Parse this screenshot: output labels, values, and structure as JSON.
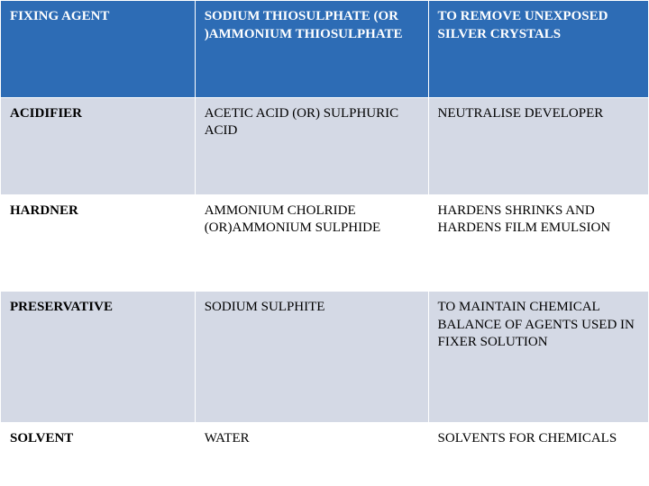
{
  "table": {
    "rows": [
      {
        "style": "header",
        "agent": "FIXING AGENT",
        "chemical": "SODIUM THIOSULPHATE (OR )AMMONIUM THIOSULPHATE",
        "purpose": "TO REMOVE UNEXPOSED SILVER CRYSTALS"
      },
      {
        "style": "alt",
        "agent": "ACIDIFIER",
        "chemical": "ACETIC ACID (OR) SULPHURIC ACID",
        "purpose": "NEUTRALISE DEVELOPER"
      },
      {
        "style": "plain",
        "agent": "HARDNER",
        "chemical": "AMMONIUM CHOLRIDE (OR)AMMONIUM SULPHIDE",
        "purpose": "HARDENS SHRINKS AND HARDENS FILM EMULSION"
      },
      {
        "style": "alt",
        "agent": "PRESERVATIVE",
        "chemical": "SODIUM SULPHITE",
        "purpose": "TO MAINTAIN CHEMICAL BALANCE OF AGENTS USED IN FIXER SOLUTION"
      },
      {
        "style": "plain",
        "agent": "SOLVENT",
        "chemical": "WATER",
        "purpose": "SOLVENTS FOR CHEMICALS"
      }
    ]
  },
  "colors": {
    "header_bg": "#2d6cb5",
    "header_text": "#ffffff",
    "alt_bg": "#d4d9e5",
    "plain_bg": "#ffffff",
    "border": "#ffffff"
  }
}
